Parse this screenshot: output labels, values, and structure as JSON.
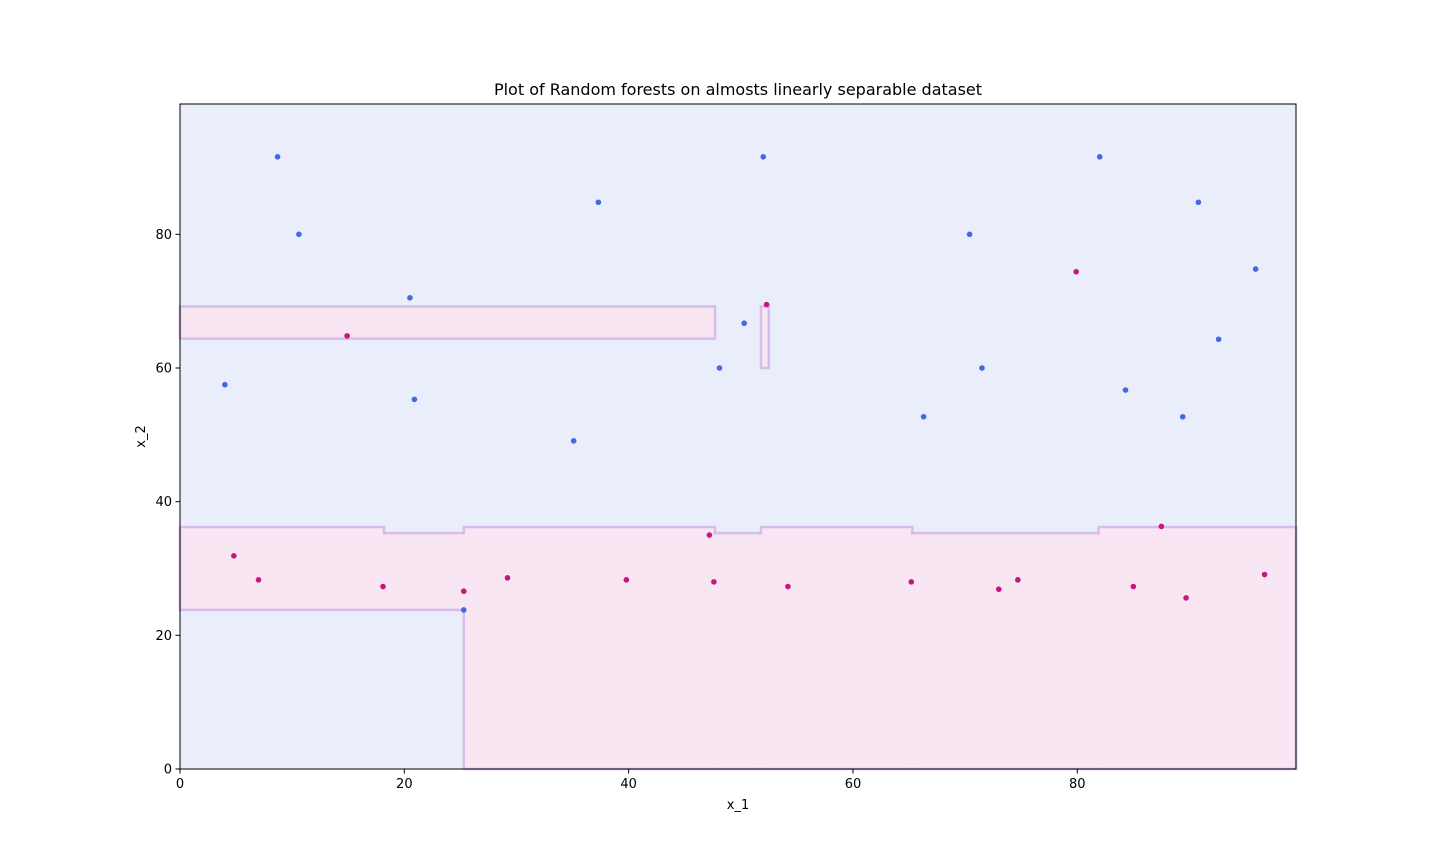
{
  "chart_data": {
    "type": "scatter",
    "title": "Plot of Random forests on almosts linearly separable dataset",
    "xlabel": "x_1",
    "ylabel": "x_2",
    "xlim": [
      0,
      99.5
    ],
    "ylim": [
      0,
      99.5
    ],
    "xticks": [
      0,
      20,
      40,
      60,
      80
    ],
    "yticks": [
      0,
      20,
      40,
      60,
      80
    ],
    "grid": false,
    "colors": {
      "class_blue_point": "#4169e1",
      "class_pink_point": "#c71585",
      "region_blue": "#eaeefa",
      "region_pink": "#f8e6f2",
      "boundary": "#d5b7ea"
    },
    "regions_pink": [
      {
        "x0": 0,
        "x1": 18.2,
        "y0": 23.8,
        "y1": 36.2
      },
      {
        "x0": 18.2,
        "x1": 25.3,
        "y0": 23.8,
        "y1": 35.3
      },
      {
        "x0": 25.3,
        "x1": 47.7,
        "y0": 0,
        "y1": 36.2
      },
      {
        "x0": 47.7,
        "x1": 51.8,
        "y0": 0,
        "y1": 35.3
      },
      {
        "x0": 51.8,
        "x1": 65.3,
        "y0": 0,
        "y1": 36.2
      },
      {
        "x0": 65.3,
        "x1": 81.9,
        "y0": 0,
        "y1": 35.3
      },
      {
        "x0": 81.9,
        "x1": 99.5,
        "y0": 0,
        "y1": 36.2
      },
      {
        "x0": 0,
        "x1": 47.7,
        "y0": 64.4,
        "y1": 69.2
      },
      {
        "x0": 51.8,
        "x1": 52.5,
        "y0": 60.0,
        "y1": 69.2
      }
    ],
    "series": [
      {
        "name": "",
        "color": "#4169e1",
        "points": [
          [
            8.7,
            91.6
          ],
          [
            10.6,
            80.0
          ],
          [
            20.5,
            70.5
          ],
          [
            4.0,
            57.5
          ],
          [
            20.9,
            55.3
          ],
          [
            37.3,
            84.8
          ],
          [
            35.1,
            49.1
          ],
          [
            52.0,
            91.6
          ],
          [
            50.3,
            66.7
          ],
          [
            48.1,
            60.0
          ],
          [
            70.4,
            80.0
          ],
          [
            71.5,
            60.0
          ],
          [
            66.3,
            52.7
          ],
          [
            82.0,
            91.6
          ],
          [
            84.3,
            56.7
          ],
          [
            89.4,
            52.7
          ],
          [
            90.8,
            84.8
          ],
          [
            92.6,
            64.3
          ],
          [
            95.9,
            74.8
          ],
          [
            25.3,
            23.8
          ]
        ]
      },
      {
        "name": "",
        "color": "#c71585",
        "points": [
          [
            4.8,
            31.9
          ],
          [
            7.0,
            28.3
          ],
          [
            18.1,
            27.3
          ],
          [
            14.9,
            64.8
          ],
          [
            25.3,
            26.6
          ],
          [
            29.2,
            28.6
          ],
          [
            39.8,
            28.3
          ],
          [
            47.6,
            28.0
          ],
          [
            47.2,
            35.0
          ],
          [
            52.3,
            69.5
          ],
          [
            54.2,
            27.3
          ],
          [
            65.2,
            28.0
          ],
          [
            73.0,
            26.9
          ],
          [
            74.7,
            28.3
          ],
          [
            79.9,
            74.4
          ],
          [
            85.0,
            27.3
          ],
          [
            87.5,
            36.3
          ],
          [
            89.7,
            25.6
          ],
          [
            96.7,
            29.1
          ]
        ]
      }
    ]
  }
}
